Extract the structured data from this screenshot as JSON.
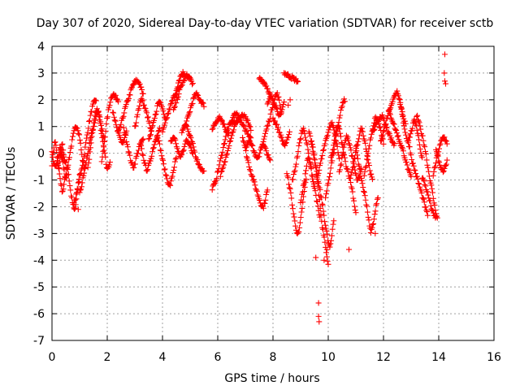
{
  "chart_data": {
    "type": "scatter",
    "title": "Day 307 of 2020, Sidereal Day-to-day VTEC variation (SDTVAR) for receiver sctb",
    "xlabel": "GPS time / hours",
    "ylabel": "SDTVAR / TECUs",
    "xlim": [
      0,
      16
    ],
    "ylim": [
      -7,
      4
    ],
    "xticks": [
      0,
      2,
      4,
      6,
      8,
      10,
      12,
      14,
      16
    ],
    "yticks": [
      -7,
      -6,
      -5,
      -4,
      -3,
      -2,
      -1,
      0,
      1,
      2,
      3,
      4
    ],
    "grid": true,
    "marker": "+",
    "series": [
      {
        "name": "SDTVAR",
        "color": "#ff0000",
        "tracks": [
          {
            "x0": 0.0,
            "x1": 0.45,
            "y": [
              -0.4,
              0.2,
              0.4,
              -0.2,
              -0.6,
              0.1,
              0.3,
              -0.3
            ]
          },
          {
            "x0": 0.0,
            "x1": 0.5,
            "y": [
              0.0,
              -0.5,
              -0.3,
              0.2,
              -0.1,
              -0.4
            ]
          },
          {
            "x0": 0.2,
            "x1": 1.0,
            "y": [
              -0.3,
              -0.9,
              -1.4,
              -1.0,
              -0.5,
              -1.2,
              -1.8,
              -2.1,
              -1.5,
              -0.8
            ]
          },
          {
            "x0": 0.3,
            "x1": 1.2,
            "y": [
              0.0,
              -0.4,
              -0.9,
              -0.3,
              0.3,
              0.8,
              1.0,
              0.6,
              -0.2,
              -0.6
            ]
          },
          {
            "x0": 0.8,
            "x1": 1.6,
            "y": [
              -1.8,
              -1.4,
              -0.8,
              -0.2,
              0.6,
              1.3,
              1.8,
              2.0
            ]
          },
          {
            "x0": 1.0,
            "x1": 1.9,
            "y": [
              -1.5,
              -1.0,
              -0.4,
              0.2,
              0.8,
              1.2,
              1.6,
              1.0,
              0.5
            ]
          },
          {
            "x0": 1.3,
            "x1": 2.1,
            "y": [
              -0.5,
              0.4,
              1.2,
              1.6,
              1.0,
              0.3,
              -0.5,
              -0.4
            ]
          },
          {
            "x0": 1.8,
            "x1": 2.4,
            "y": [
              -0.3,
              0.5,
              1.3,
              1.9,
              2.2,
              2.1,
              2.0
            ]
          },
          {
            "x0": 2.2,
            "x1": 2.7,
            "y": [
              1.6,
              1.0,
              0.6,
              0.4,
              0.8
            ]
          },
          {
            "x0": 2.4,
            "x1": 3.3,
            "y": [
              0.8,
              1.2,
              1.7,
              2.1,
              2.5,
              2.7,
              2.6,
              2.2
            ]
          },
          {
            "x0": 2.6,
            "x1": 3.3,
            "y": [
              0.9,
              0.4,
              -0.2,
              -0.5,
              -0.1,
              0.3,
              0.5
            ]
          },
          {
            "x0": 3.0,
            "x1": 3.6,
            "y": [
              1.0,
              1.6,
              2.0,
              1.7,
              1.3,
              0.8
            ]
          },
          {
            "x0": 3.2,
            "x1": 3.9,
            "y": [
              0.3,
              -0.2,
              -0.6,
              -0.3,
              0.2,
              0.6,
              0.9
            ]
          },
          {
            "x0": 3.5,
            "x1": 4.1,
            "y": [
              0.5,
              0.9,
              1.4,
              1.9,
              1.8,
              1.3
            ]
          },
          {
            "x0": 3.8,
            "x1": 4.5,
            "y": [
              0.7,
              0.2,
              -0.4,
              -0.9,
              -1.2,
              -0.7,
              -0.2
            ]
          },
          {
            "x0": 4.0,
            "x1": 4.6,
            "y": [
              0.8,
              1.3,
              1.8,
              2.2,
              2.4
            ]
          },
          {
            "x0": 4.3,
            "x1": 5.1,
            "y": [
              0.4,
              0.6,
              0.2,
              -0.1,
              0.1,
              0.5,
              0.3,
              0.0
            ]
          },
          {
            "x0": 4.5,
            "x1": 5.1,
            "y": [
              2.4,
              2.8,
              3.0,
              2.9,
              2.8,
              2.6
            ]
          },
          {
            "x0": 4.4,
            "x1": 5.0,
            "y": [
              1.6,
              2.0,
              2.4,
              2.7,
              2.9,
              2.8
            ]
          },
          {
            "x0": 4.8,
            "x1": 5.5,
            "y": [
              1.0,
              1.4,
              1.9,
              2.2,
              2.0,
              1.8
            ]
          },
          {
            "x0": 4.7,
            "x1": 5.5,
            "y": [
              0.8,
              1.1,
              0.7,
              0.3,
              -0.2,
              -0.5,
              -0.7
            ]
          },
          {
            "x0": 5.8,
            "x1": 6.6,
            "y": [
              -1.3,
              -1.0,
              -0.4,
              0.2,
              0.8,
              1.1,
              1.2
            ]
          },
          {
            "x0": 5.8,
            "x1": 6.4,
            "y": [
              0.9,
              1.2,
              1.3,
              1.0,
              0.7
            ]
          },
          {
            "x0": 6.1,
            "x1": 7.2,
            "y": [
              -0.8,
              -0.4,
              0.2,
              0.7,
              1.1,
              1.3,
              1.4,
              1.2,
              0.9
            ]
          },
          {
            "x0": 6.5,
            "x1": 7.2,
            "y": [
              1.2,
              1.5,
              1.3,
              1.0,
              0.8,
              0.6
            ]
          },
          {
            "x0": 6.9,
            "x1": 7.8,
            "y": [
              0.6,
              -0.1,
              -0.7,
              -1.2,
              -1.7,
              -2.0,
              -1.4
            ]
          },
          {
            "x0": 7.0,
            "x1": 7.9,
            "y": [
              0.2,
              0.5,
              0.1,
              -0.2,
              0.3,
              0.1,
              -0.3
            ]
          },
          {
            "x0": 7.5,
            "x1": 7.9,
            "y": [
              2.8,
              2.7,
              2.5,
              2.2
            ]
          },
          {
            "x0": 7.8,
            "x1": 8.4,
            "y": [
              1.8,
              2.1,
              1.9,
              1.6,
              1.4,
              1.9
            ]
          },
          {
            "x0": 7.6,
            "x1": 8.3,
            "y": [
              0.3,
              0.8,
              1.3,
              1.9,
              2.2,
              1.6
            ]
          },
          {
            "x0": 8.0,
            "x1": 8.6,
            "y": [
              1.3,
              1.0,
              0.6,
              0.3,
              0.8
            ]
          },
          {
            "x0": 8.4,
            "x1": 8.9,
            "y": [
              3.0,
              2.9,
              2.8,
              2.7
            ]
          },
          {
            "x0": 8.5,
            "x1": 9.2,
            "y": [
              -0.8,
              -1.5,
              -2.5,
              -3.0,
              -2.0,
              -1.0
            ]
          },
          {
            "x0": 8.7,
            "x1": 9.5,
            "y": [
              -1.0,
              -0.4,
              0.4,
              0.9,
              0.3,
              -0.5,
              -1.3
            ]
          },
          {
            "x0": 9.0,
            "x1": 9.7,
            "y": [
              -1.8,
              -1.0,
              -0.2,
              -0.8,
              -1.6,
              -2.4
            ]
          },
          {
            "x0": 9.3,
            "x1": 10.0,
            "y": [
              0.8,
              0.2,
              -0.5,
              -1.4,
              -2.6,
              -3.3,
              -4.2
            ]
          },
          {
            "x0": 9.4,
            "x1": 10.2,
            "y": [
              0.5,
              -0.4,
              -1.2,
              -2.0,
              -2.9,
              -3.5,
              -2.5
            ]
          },
          {
            "x0": 9.6,
            "x1": 10.4,
            "y": [
              -0.9,
              -0.3,
              0.3,
              0.8,
              1.1,
              0.6,
              -0.2
            ]
          },
          {
            "x0": 9.9,
            "x1": 10.6,
            "y": [
              -1.6,
              -1.0,
              -0.3,
              0.4,
              1.1,
              1.7,
              2.0
            ]
          },
          {
            "x0": 10.1,
            "x1": 11.0,
            "y": [
              -0.2,
              0.5,
              1.0,
              0.4,
              -0.3,
              -0.8,
              -1.4,
              -2.2
            ]
          },
          {
            "x0": 10.4,
            "x1": 11.2,
            "y": [
              -0.7,
              0.0,
              0.6,
              0.2,
              -0.5,
              -1.0,
              -0.6
            ]
          },
          {
            "x0": 10.8,
            "x1": 11.6,
            "y": [
              -0.9,
              -0.3,
              0.4,
              0.9,
              0.4,
              -0.4,
              -1.0
            ]
          },
          {
            "x0": 11.0,
            "x1": 11.8,
            "y": [
              0.2,
              -0.6,
              -1.3,
              -2.0,
              -2.9,
              -2.4,
              -1.6
            ]
          },
          {
            "x0": 11.3,
            "x1": 12.0,
            "y": [
              -0.8,
              0.0,
              0.8,
              1.3,
              1.0,
              0.4
            ]
          },
          {
            "x0": 11.6,
            "x1": 12.4,
            "y": [
              0.8,
              1.1,
              1.4,
              1.0,
              0.6,
              0.3
            ]
          },
          {
            "x0": 11.9,
            "x1": 12.8,
            "y": [
              0.5,
              1.0,
              1.6,
              2.0,
              2.3,
              1.7,
              1.1
            ]
          },
          {
            "x0": 12.2,
            "x1": 13.0,
            "y": [
              1.5,
              1.2,
              0.8,
              0.4,
              0.0,
              -0.5,
              -0.9
            ]
          },
          {
            "x0": 12.6,
            "x1": 13.4,
            "y": [
              1.8,
              1.1,
              0.5,
              0.8,
              1.2,
              0.6,
              -0.2
            ]
          },
          {
            "x0": 12.9,
            "x1": 13.6,
            "y": [
              0.4,
              -0.3,
              -0.8,
              -1.3,
              -1.8,
              -2.3
            ]
          },
          {
            "x0": 13.2,
            "x1": 13.9,
            "y": [
              1.4,
              0.9,
              0.3,
              -0.6,
              -1.4,
              -2.2
            ]
          },
          {
            "x0": 13.4,
            "x1": 13.95,
            "y": [
              -0.9,
              -1.3,
              -1.8,
              -2.3,
              -2.4
            ]
          },
          {
            "x0": 13.8,
            "x1": 14.3,
            "y": [
              -0.8,
              -0.2,
              0.3,
              0.6,
              0.4
            ]
          },
          {
            "x0": 13.9,
            "x1": 14.3,
            "y": [
              0.1,
              -0.4,
              -0.7,
              -0.3
            ]
          }
        ],
        "points": [
          [
            0.95,
            -2.1
          ],
          [
            9.65,
            -5.6
          ],
          [
            9.65,
            -6.1
          ],
          [
            9.67,
            -6.3
          ],
          [
            9.85,
            -4.0
          ],
          [
            10.75,
            -3.6
          ],
          [
            11.7,
            -3.0
          ],
          [
            14.22,
            3.7
          ],
          [
            14.22,
            2.7
          ],
          [
            14.2,
            3.0
          ],
          [
            14.25,
            2.6
          ],
          [
            9.95,
            -3.6
          ],
          [
            9.55,
            -3.9
          ],
          [
            8.62,
            2.0
          ],
          [
            8.55,
            1.8
          ]
        ]
      }
    ]
  }
}
